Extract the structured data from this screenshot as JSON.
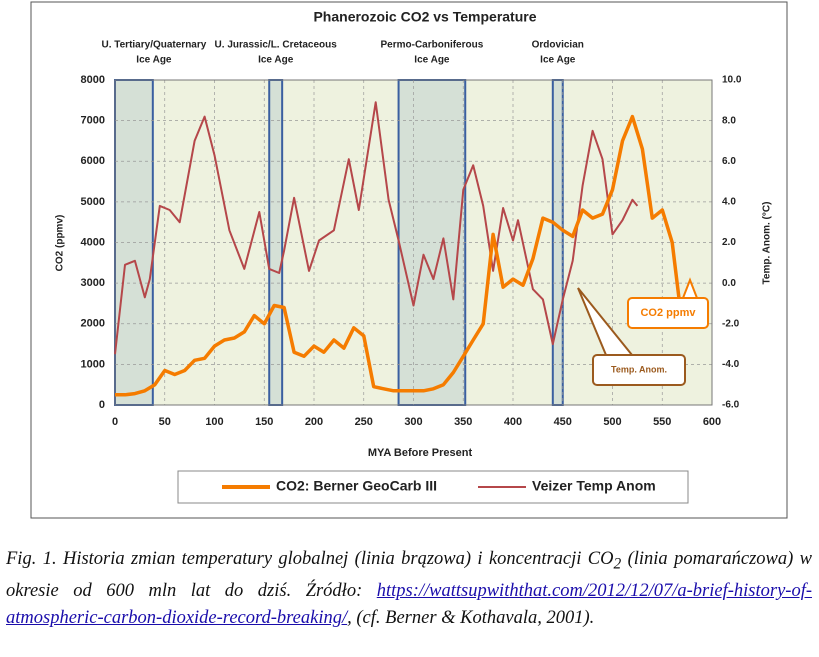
{
  "chart_data": {
    "type": "line",
    "title": "Phanerozoic CO2 vs Temperature",
    "x_label": "MYA Before Present",
    "y_label": "CO2 (ppmv)",
    "y2_label": "Temp. Anom. (°C)",
    "xlim": [
      0,
      600
    ],
    "xticks": [
      0,
      50,
      100,
      150,
      200,
      250,
      300,
      350,
      400,
      450,
      500,
      550,
      600
    ],
    "ylim": [
      0,
      8000
    ],
    "yticks": [
      0,
      1000,
      2000,
      3000,
      4000,
      5000,
      6000,
      7000,
      8000
    ],
    "y2lim": [
      -6,
      10
    ],
    "y2ticks": [
      {
        "value": 10,
        "label": "10.0"
      },
      {
        "value": 8,
        "label": "8.0"
      },
      {
        "value": 6,
        "label": "6.0"
      },
      {
        "value": 4,
        "label": "4.0"
      },
      {
        "value": 2,
        "label": "2.0"
      },
      {
        "value": 0,
        "label": "0.0"
      },
      {
        "value": -2,
        "label": "-2.0"
      },
      {
        "value": -4,
        "label": "-4.0"
      },
      {
        "value": -6,
        "label": "-6.0"
      }
    ],
    "grid": true,
    "ice_ages": [
      {
        "label": [
          "U. Tertiary/Quaternary",
          "Ice Age"
        ],
        "xrange": [
          0,
          38
        ]
      },
      {
        "label": [
          "U. Jurassic/L. Cretaceous",
          "Ice Age"
        ],
        "xrange": [
          155,
          168
        ]
      },
      {
        "label": [
          "Permo-Carboniferous",
          "Ice Age"
        ],
        "xrange": [
          285,
          352
        ]
      },
      {
        "label": [
          "Ordovician",
          "Ice Age"
        ],
        "xrange": [
          440,
          450
        ]
      }
    ],
    "series": [
      {
        "name": "CO2: Berner GeoCarb III",
        "color": "#f57c00",
        "x": [
          0,
          10,
          20,
          30,
          40,
          50,
          60,
          70,
          80,
          90,
          100,
          110,
          120,
          130,
          140,
          150,
          160,
          170,
          180,
          190,
          200,
          210,
          220,
          230,
          240,
          250,
          260,
          270,
          280,
          290,
          300,
          310,
          320,
          330,
          340,
          350,
          360,
          370,
          380,
          390,
          400,
          410,
          420,
          430,
          440,
          450,
          460,
          470,
          480,
          490,
          500,
          510,
          520,
          530,
          540,
          550,
          560,
          570
        ],
        "values": [
          250,
          250,
          280,
          350,
          500,
          850,
          750,
          850,
          1100,
          1150,
          1450,
          1600,
          1650,
          1800,
          2200,
          2000,
          2450,
          2400,
          1300,
          1200,
          1450,
          1300,
          1600,
          1400,
          1900,
          1700,
          450,
          400,
          350,
          350,
          350,
          350,
          400,
          500,
          800,
          1200,
          1600,
          2000,
          4200,
          2900,
          3100,
          2950,
          3600,
          4600,
          4500,
          4300,
          4150,
          4800,
          4600,
          4700,
          5300,
          6500,
          7100,
          6300,
          4600,
          4800,
          4000,
          2000
        ]
      },
      {
        "name": "Veizer Temp Anom",
        "color": "#b5474a",
        "axis": "y2",
        "x": [
          0,
          10,
          20,
          30,
          35,
          45,
          55,
          65,
          80,
          90,
          100,
          115,
          130,
          145,
          155,
          165,
          170,
          180,
          195,
          205,
          220,
          235,
          245,
          262,
          275,
          285,
          300,
          310,
          320,
          330,
          340,
          350,
          360,
          370,
          380,
          390,
          400,
          405,
          420,
          430,
          440,
          450,
          460,
          470,
          480,
          490,
          500,
          510,
          520,
          525
        ],
        "values": [
          -3.5,
          0.9,
          1.1,
          -0.7,
          0.2,
          3.8,
          3.6,
          3.0,
          7.0,
          8.2,
          6.3,
          2.6,
          0.7,
          3.5,
          0.7,
          0.5,
          1.6,
          4.2,
          0.6,
          2.1,
          2.6,
          6.1,
          3.6,
          8.9,
          4.1,
          2.1,
          -1.1,
          1.4,
          0.2,
          2.2,
          -0.8,
          4.6,
          5.8,
          3.8,
          0.6,
          3.7,
          2.1,
          3.1,
          -0.3,
          -0.8,
          -3.0,
          -0.8,
          1.1,
          4.8,
          7.5,
          6.1,
          2.4,
          3.1,
          4.1,
          3.8
        ]
      }
    ],
    "annotations": [
      {
        "text": "CO2 ppmv",
        "color": "#f57c00"
      },
      {
        "text": "Temp. Anom.",
        "color": "#9b5a1e"
      }
    ]
  },
  "caption": {
    "before": "Fig. 1. Historia zmian temperatury globalnej (linia brązowa) i koncentracji CO",
    "sub": "2",
    "middle": " (linia pomarańczowa) w okresie od 600 mln lat do dziś. Źródło: ",
    "link": "https://wattsupwiththat.com/2012/12/07/a-brief-history-of-atmospheric-carbon-dioxide-record-breaking/",
    "after": ", (cf. Berner & Kothavala, 2001)."
  }
}
